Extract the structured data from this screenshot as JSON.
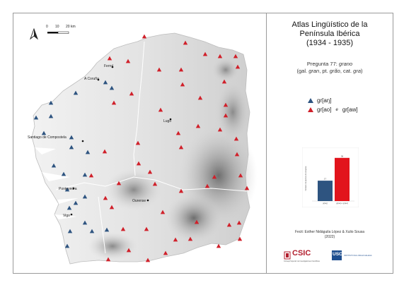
{
  "title": {
    "line1": "Atlas Lingüístico de la",
    "line2": "Península Ibérica",
    "line3": "(1934 - 1935)"
  },
  "question": {
    "prefix": "Pregunta 77: ",
    "word": "grano",
    "p1": "(gal. ",
    "w1": "gran",
    "p2": ", pt. ",
    "w2": "grão",
    "p3": ", cat. ",
    "w3": "gra",
    "p4": ")"
  },
  "legend": {
    "blue": {
      "label": "gr[aŋ]",
      "color": "#2e5480"
    },
    "red": {
      "label_a": "gr[ao]",
      "conj": "e",
      "label_b": "gr[aw]",
      "color": "#d0202a"
    }
  },
  "scale": {
    "t0": "0",
    "t10": "10",
    "t20": "20 km"
  },
  "cities": [
    {
      "name": "Ferrol"
    },
    {
      "name": "A Coruña"
    },
    {
      "name": "Santiago de Compostela"
    },
    {
      "name": "Lugo"
    },
    {
      "name": "Pontevedra"
    },
    {
      "name": "Ourense"
    },
    {
      "name": "Vigo"
    }
  ],
  "chart_data": {
    "type": "bar",
    "categories": [
      "gr[aŋ]",
      "gr[ao] e gr[aw]"
    ],
    "series": [
      {
        "values": [
          17,
          36
        ]
      }
    ],
    "colors": [
      "#2e5480",
      "#e2141c"
    ],
    "ylabel": "Número de puntos de enquisa",
    "ylim": [
      0,
      40
    ]
  },
  "credit": {
    "line1": "Fecit: Esther Nidáguila López & Xulio Sousa",
    "line2": "(2022)"
  },
  "logos": {
    "csic": "CSIC",
    "csic_sub": "Consejo Superior de Investigaciones Científicas",
    "usc": "USC",
    "usc_sub": "INSTITUTO DA LINGUA GALEGA"
  }
}
